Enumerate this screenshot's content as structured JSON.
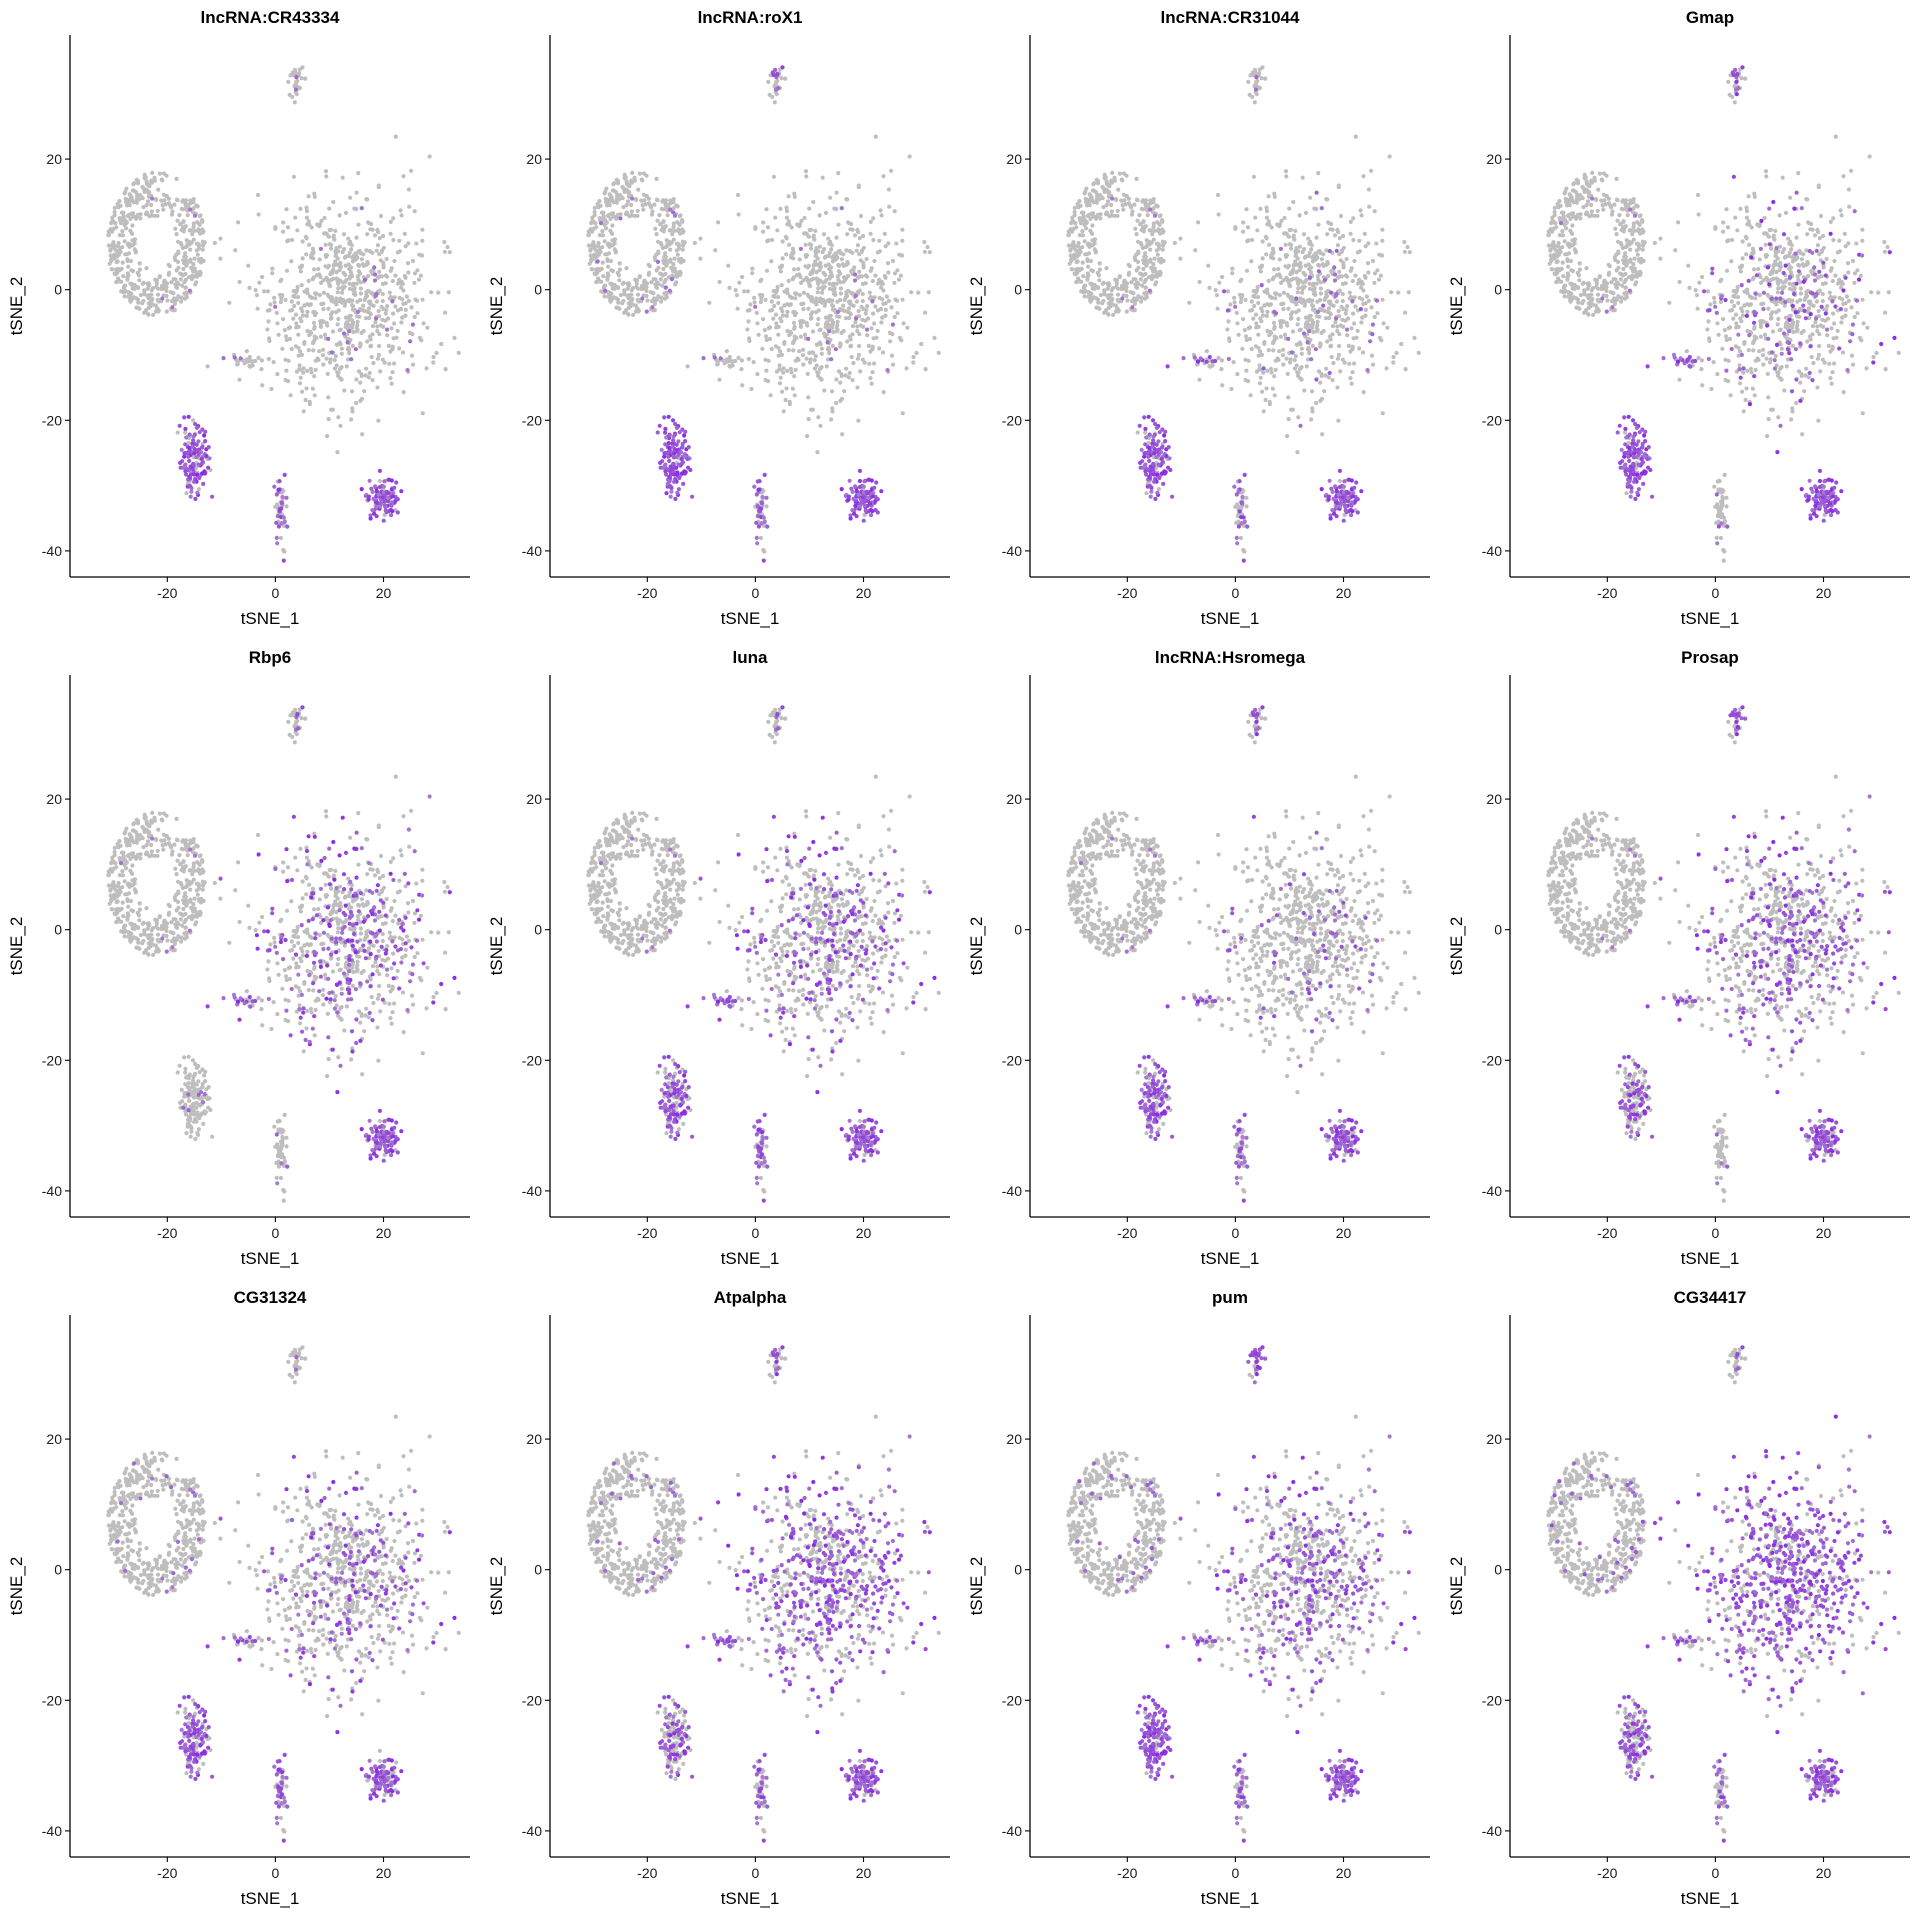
{
  "chart_data": {
    "type": "scatter",
    "layout": "feature-plot-grid",
    "rows": 3,
    "cols": 4,
    "xlabel": "tSNE_1",
    "ylabel": "tSNE_2",
    "xlim": [
      -38,
      36
    ],
    "ylim": [
      -44,
      39
    ],
    "xticks": [
      -20,
      0,
      20
    ],
    "yticks": [
      -40,
      -20,
      0,
      20
    ],
    "colors": {
      "low": "#bebebe",
      "high": "#8a2be2",
      "axis": "#000000"
    },
    "grid": false,
    "legend": "none",
    "clusters": [
      {
        "name": "left-blob",
        "center": [
          -22,
          7
        ],
        "spread": [
          9,
          11
        ],
        "n": 520,
        "ring": true
      },
      {
        "name": "right-blob",
        "center": [
          13,
          -2
        ],
        "spread": [
          14,
          14
        ],
        "n": 760
      },
      {
        "name": "top-small",
        "center": [
          4,
          32
        ],
        "spread": [
          1.3,
          3
        ],
        "n": 30
      },
      {
        "name": "middle-stripe",
        "center": [
          -6,
          -11
        ],
        "spread": [
          3.5,
          0.8
        ],
        "n": 30
      },
      {
        "name": "bottom-left",
        "center": [
          -15,
          -26
        ],
        "spread": [
          2.5,
          5
        ],
        "n": 140
      },
      {
        "name": "bottom-middle",
        "center": [
          1,
          -33
        ],
        "spread": [
          0.9,
          5
        ],
        "n": 60
      },
      {
        "name": "bottom-right",
        "center": [
          20,
          -32
        ],
        "spread": [
          2.5,
          3
        ],
        "n": 110
      }
    ],
    "panels": [
      {
        "title": "lncRNA:CR43334",
        "expression": [
          0.01,
          0.03,
          0.05,
          0.05,
          0.75,
          0.45,
          0.9
        ]
      },
      {
        "title": "lncRNA:roX1",
        "expression": [
          0.03,
          0.02,
          0.25,
          0.05,
          0.95,
          0.5,
          0.95
        ]
      },
      {
        "title": "lncRNA:CR31044",
        "expression": [
          0.01,
          0.06,
          0.05,
          0.4,
          0.8,
          0.3,
          0.9
        ]
      },
      {
        "title": "Gmap",
        "expression": [
          0.02,
          0.18,
          0.3,
          0.65,
          0.9,
          0.1,
          0.95
        ]
      },
      {
        "title": "Rbp6",
        "expression": [
          0.02,
          0.32,
          0.1,
          0.6,
          0.05,
          0.05,
          0.9
        ]
      },
      {
        "title": "luna",
        "expression": [
          0.02,
          0.28,
          0.15,
          0.7,
          0.6,
          0.6,
          0.85
        ]
      },
      {
        "title": "lncRNA:Hsromega",
        "expression": [
          0.02,
          0.1,
          0.3,
          0.5,
          0.65,
          0.45,
          0.8
        ]
      },
      {
        "title": "Prosap",
        "expression": [
          0.01,
          0.35,
          0.55,
          0.55,
          0.4,
          0.05,
          0.8
        ]
      },
      {
        "title": "CG31324",
        "expression": [
          0.04,
          0.25,
          0.05,
          0.4,
          0.65,
          0.55,
          0.75
        ]
      },
      {
        "title": "Atpalpha",
        "expression": [
          0.05,
          0.5,
          0.3,
          0.7,
          0.45,
          0.4,
          0.85
        ]
      },
      {
        "title": "pum",
        "expression": [
          0.06,
          0.35,
          0.8,
          0.45,
          0.9,
          0.4,
          0.9
        ]
      },
      {
        "title": "CG34417",
        "expression": [
          0.08,
          0.65,
          0.1,
          0.55,
          0.5,
          0.3,
          0.8
        ]
      }
    ]
  }
}
